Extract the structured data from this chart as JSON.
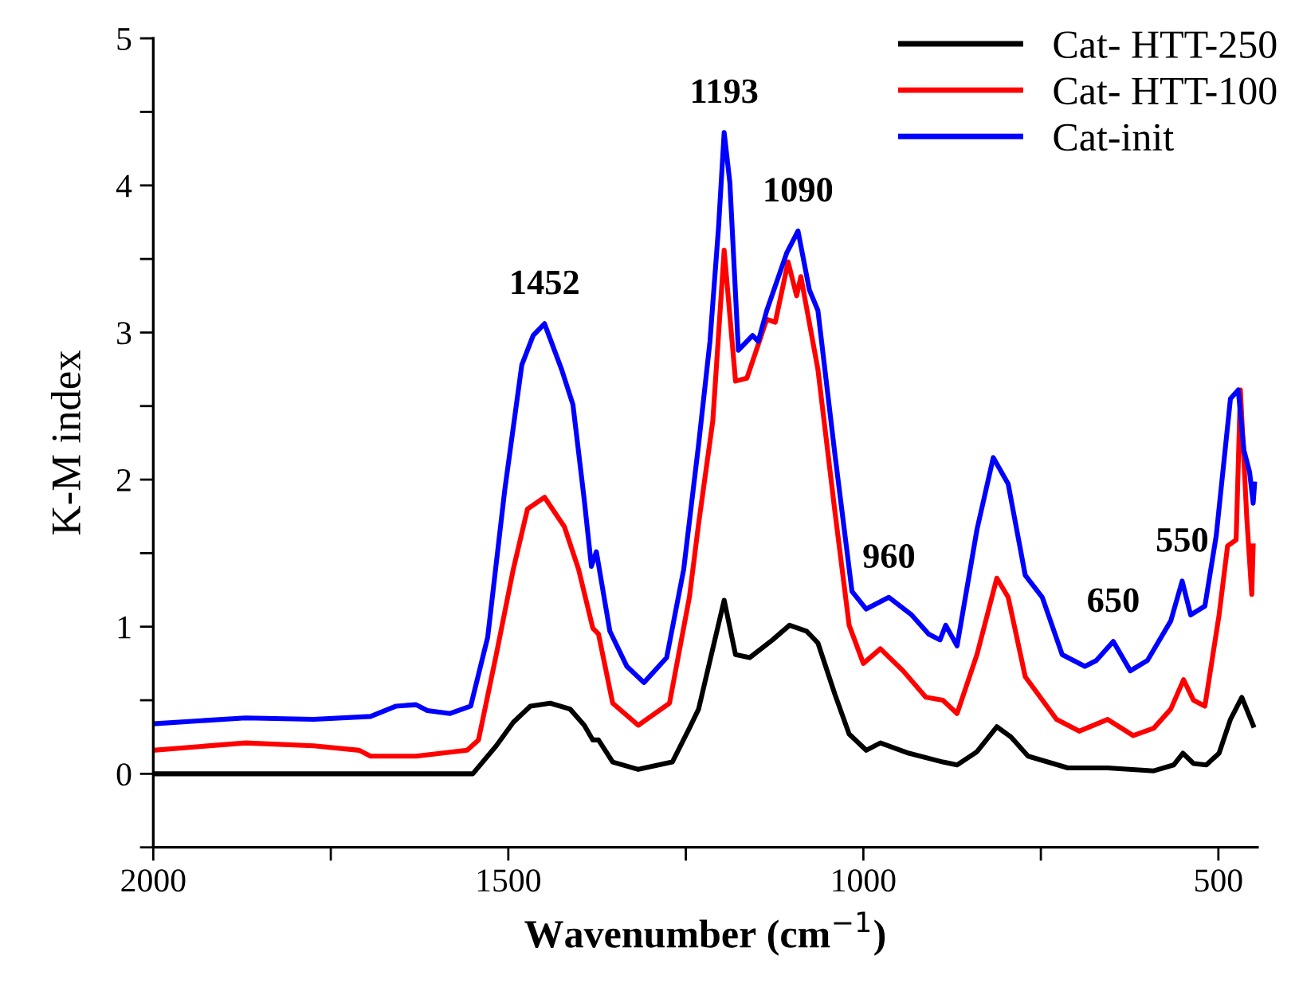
{
  "chart_data": {
    "type": "line",
    "xlabel": "Wavenumber (cm$^{−1}$)",
    "ylabel": "K-M index",
    "xlim": [
      2000,
      445
    ],
    "xticks": [
      2000,
      {
        "value": 1750,
        "label": null
      },
      1500,
      {
        "value": 1250,
        "label": null
      },
      1000,
      {
        "value": 750,
        "label": null
      },
      500
    ],
    "ylim": [
      -0.5,
      5
    ],
    "yticks": [
      {
        "value": -0.5,
        "label": null
      },
      0,
      {
        "value": 0.5,
        "label": null
      },
      1,
      {
        "value": 1.5,
        "label": null
      },
      2,
      {
        "value": 2.5,
        "label": null
      },
      3,
      {
        "value": 3.5,
        "label": null
      },
      4,
      {
        "value": 4.5,
        "label": null
      },
      5
    ],
    "grid": false,
    "legend": "top right",
    "marker": "none",
    "line_style": "solid",
    "series": [
      {
        "name": "Cat- HTT-250",
        "color": "#000000",
        "x": [
          2000,
          1550,
          1517,
          1493,
          1469,
          1441,
          1413,
          1393,
          1381,
          1373,
          1353,
          1317,
          1269,
          1245,
          1232,
          1216,
          1196,
          1180,
          1160,
          1128,
          1104,
          1080,
          1064,
          1040,
          1020,
          996,
          976,
          936,
          888,
          868,
          840,
          812,
          792,
          768,
          712,
          656,
          591,
          563,
          550,
          535,
          517,
          499,
          483,
          467,
          451
        ],
        "values": [
          0,
          0,
          0.19,
          0.35,
          0.46,
          0.48,
          0.44,
          0.33,
          0.23,
          0.23,
          0.08,
          0.03,
          0.08,
          0.31,
          0.44,
          0.77,
          1.18,
          0.81,
          0.79,
          0.91,
          1.01,
          0.97,
          0.89,
          0.54,
          0.27,
          0.16,
          0.21,
          0.14,
          0.08,
          0.06,
          0.15,
          0.32,
          0.25,
          0.12,
          0.04,
          0.04,
          0.02,
          0.06,
          0.14,
          0.07,
          0.06,
          0.14,
          0.37,
          0.52,
          0.33
        ]
      },
      {
        "name": "Cat- HTT-100",
        "color": "#ff0000",
        "x": [
          2000,
          1870,
          1774,
          1710,
          1694,
          1630,
          1558,
          1542,
          1517,
          1493,
          1473,
          1449,
          1421,
          1401,
          1381,
          1373,
          1353,
          1317,
          1273,
          1245,
          1232,
          1212,
          1196,
          1180,
          1164,
          1136,
          1124,
          1106,
          1094,
          1088,
          1064,
          1040,
          1020,
          1000,
          976,
          944,
          912,
          888,
          868,
          840,
          812,
          796,
          772,
          728,
          696,
          656,
          620,
          591,
          567,
          549,
          535,
          519,
          499,
          487,
          475,
          469,
          460,
          453,
          451
        ],
        "values": [
          0.16,
          0.21,
          0.19,
          0.16,
          0.12,
          0.12,
          0.16,
          0.23,
          0.81,
          1.39,
          1.8,
          1.88,
          1.68,
          1.39,
          0.99,
          0.95,
          0.48,
          0.33,
          0.48,
          1.2,
          1.7,
          2.4,
          3.56,
          2.67,
          2.69,
          3.09,
          3.07,
          3.48,
          3.25,
          3.38,
          2.75,
          1.78,
          1.01,
          0.75,
          0.85,
          0.7,
          0.52,
          0.5,
          0.41,
          0.81,
          1.33,
          1.2,
          0.66,
          0.37,
          0.29,
          0.37,
          0.26,
          0.31,
          0.44,
          0.64,
          0.5,
          0.46,
          1.08,
          1.55,
          1.59,
          2.61,
          1.74,
          1.22,
          1.55
        ]
      },
      {
        "name": "Cat-init",
        "color": "#0000ff",
        "x": [
          2000,
          1870,
          1774,
          1694,
          1658,
          1630,
          1614,
          1582,
          1553,
          1529,
          1505,
          1481,
          1465,
          1449,
          1425,
          1409,
          1393,
          1383,
          1376,
          1357,
          1333,
          1309,
          1277,
          1253,
          1232,
          1216,
          1204,
          1196,
          1188,
          1176,
          1156,
          1148,
          1136,
          1108,
          1092,
          1076,
          1064,
          1040,
          1016,
          996,
          964,
          932,
          908,
          892,
          884,
          868,
          840,
          817,
          796,
          772,
          748,
          720,
          688,
          672,
          648,
          624,
          600,
          567,
          551,
          539,
          519,
          503,
          483,
          472,
          464,
          456,
          451,
          449
        ],
        "values": [
          0.34,
          0.38,
          0.37,
          0.39,
          0.46,
          0.47,
          0.43,
          0.41,
          0.46,
          0.93,
          1.93,
          2.78,
          2.98,
          3.06,
          2.75,
          2.51,
          1.86,
          1.41,
          1.51,
          0.97,
          0.73,
          0.62,
          0.79,
          1.39,
          2.24,
          2.94,
          3.71,
          4.36,
          4.02,
          2.88,
          2.98,
          2.94,
          3.15,
          3.54,
          3.69,
          3.29,
          3.15,
          2.17,
          1.24,
          1.12,
          1.2,
          1.08,
          0.95,
          0.91,
          1.01,
          0.87,
          1.66,
          2.15,
          1.97,
          1.35,
          1.2,
          0.81,
          0.73,
          0.77,
          0.9,
          0.7,
          0.77,
          1.04,
          1.31,
          1.08,
          1.14,
          1.62,
          2.55,
          2.61,
          2.2,
          2.05,
          1.84,
          1.97
        ]
      }
    ],
    "annotations": [
      {
        "text": "1452",
        "x": 1449,
        "y": 3.06
      },
      {
        "text": "1193",
        "x": 1196,
        "y": 4.36
      },
      {
        "text": "1090",
        "x": 1092,
        "y": 3.69
      },
      {
        "text": "960",
        "x": 964,
        "y": 1.2
      },
      {
        "text": "650",
        "x": 648,
        "y": 0.9
      },
      {
        "text": "550",
        "x": 551,
        "y": 1.31
      }
    ]
  }
}
